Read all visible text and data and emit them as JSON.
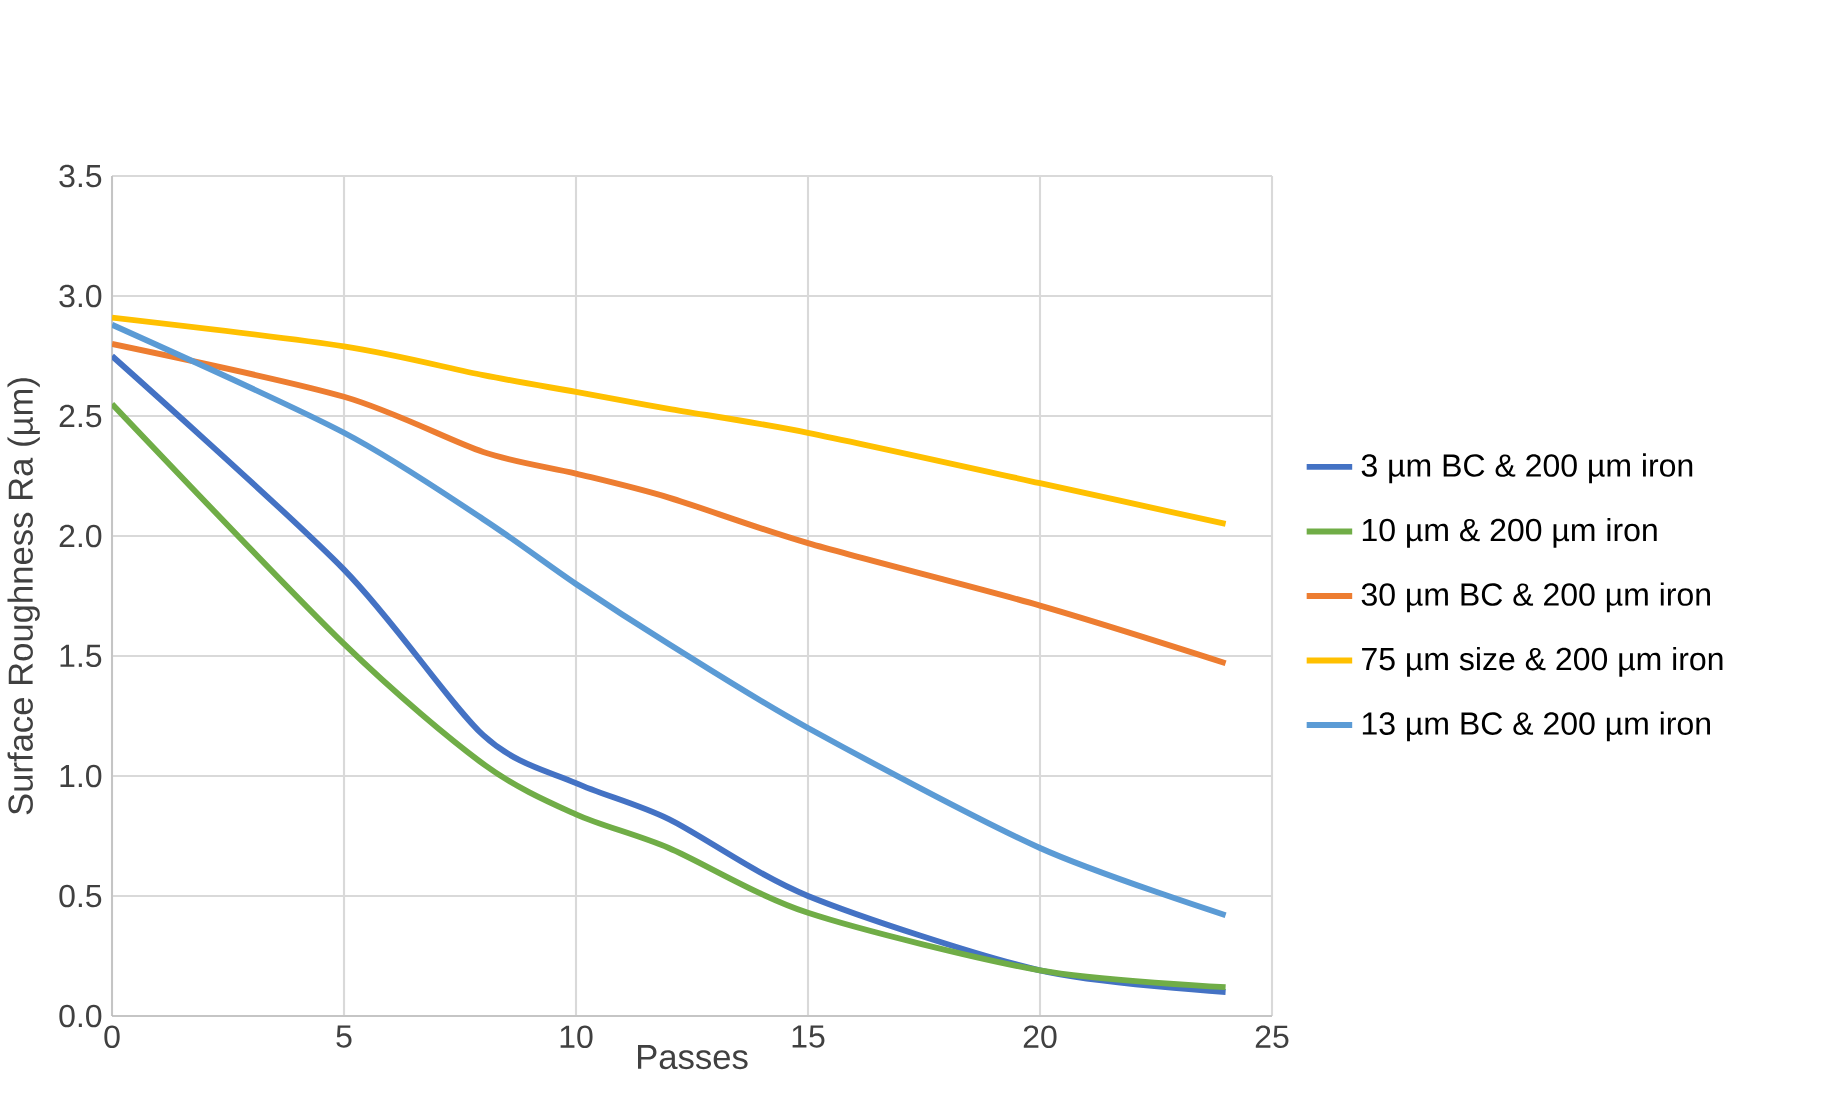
{
  "chart_data": {
    "type": "line",
    "xlabel": "Passes",
    "ylabel": "Surface Roughness  Ra (µm)",
    "xlim": [
      0,
      25
    ],
    "xticks": [
      0,
      5,
      10,
      15,
      20,
      25
    ],
    "ylim": [
      0,
      3.5
    ],
    "yticks": [
      {
        "value": 0,
        "label": "0.0"
      },
      {
        "value": 0.5,
        "label": "0.5"
      },
      {
        "value": 1,
        "label": "1.0"
      },
      {
        "value": 1.5,
        "label": "1.5"
      },
      {
        "value": 2,
        "label": "2.0"
      },
      {
        "value": 2.5,
        "label": "2.5"
      },
      {
        "value": 3,
        "label": "3.0"
      },
      {
        "value": 3.5,
        "label": "3.5"
      }
    ],
    "grid": true,
    "legend": "right",
    "marker": "none",
    "line_style": "solid",
    "x": [
      0,
      5,
      8,
      10,
      12,
      15,
      20,
      24
    ],
    "series": [
      {
        "name": "3 µm BC & 200 µm iron",
        "color": "#4472c4",
        "values": [
          2.75,
          1.86,
          1.17,
          0.97,
          0.82,
          0.5,
          0.19,
          0.1
        ]
      },
      {
        "name": "10 µm & 200 µm iron",
        "color": "#70ad47",
        "values": [
          2.55,
          1.55,
          1.05,
          0.84,
          0.7,
          0.43,
          0.19,
          0.12
        ]
      },
      {
        "name": "30 µm BC & 200 µm iron",
        "color": "#ed7d31",
        "values": [
          2.8,
          2.58,
          2.35,
          2.26,
          2.16,
          1.97,
          1.71,
          1.47
        ]
      },
      {
        "name": "75 µm size & 200 µm iron",
        "color": "#ffc000",
        "values": [
          2.91,
          2.79,
          2.67,
          2.6,
          2.53,
          2.43,
          2.22,
          2.05
        ]
      },
      {
        "name": "13 µm BC & 200 µm iron",
        "color": "#5b9bd5",
        "values": [
          2.88,
          2.43,
          2.07,
          1.8,
          1.55,
          1.2,
          0.7,
          0.42
        ]
      }
    ]
  }
}
